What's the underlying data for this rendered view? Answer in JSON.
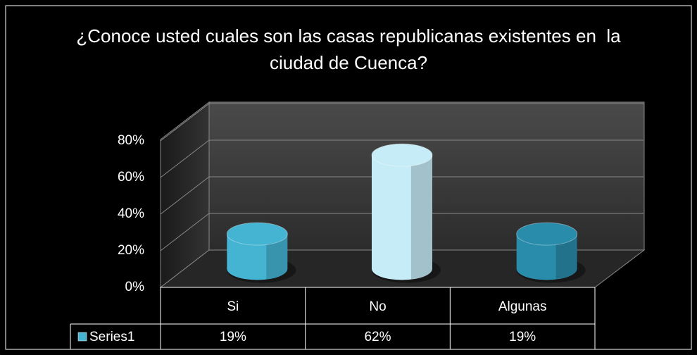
{
  "chart_data": {
    "type": "bar3d",
    "title": "¿Conoce usted cuales son las casas republicanas existentes en  la ciudad de Cuenca?",
    "categories": [
      "Si",
      "No",
      "Algunas"
    ],
    "series": [
      {
        "name": "Series1",
        "colors": [
          "#45b4d2",
          "#c6ecf7",
          "#2a8cab"
        ],
        "values": [
          19,
          62,
          19
        ],
        "value_labels": [
          "19%",
          "62%",
          "19%"
        ]
      }
    ],
    "ylim": [
      0,
      80
    ],
    "yticks": [
      {
        "value": 0,
        "label": "0%"
      },
      {
        "value": 20,
        "label": "20%"
      },
      {
        "value": 40,
        "label": "40%"
      },
      {
        "value": 60,
        "label": "60%"
      },
      {
        "value": 80,
        "label": "80%"
      }
    ],
    "grid": true,
    "data_table": true
  }
}
